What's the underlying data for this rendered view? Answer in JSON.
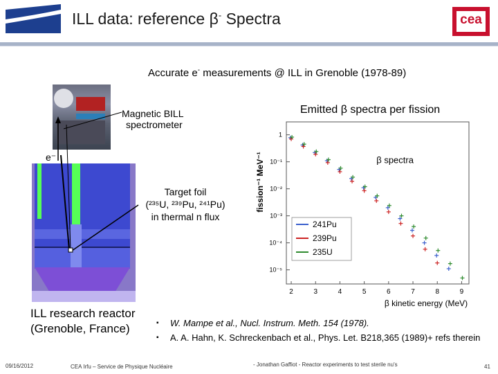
{
  "header": {
    "title": "ILL data:  reference β",
    "title_sup": "-",
    "title_end": " Spectra"
  },
  "subtitle": {
    "part1": "Accurate e",
    "sup": "-",
    "part2": " measurements @ ILL in Grenoble (1978-89)"
  },
  "labels": {
    "spectrometer_line1": "Magnetic BILL",
    "spectrometer_line2": "spectrometer",
    "electron": "e⁻",
    "target_line1": "Target foil",
    "target_line2": "(²³⁵U, ²³⁹Pu, ²⁴¹Pu)",
    "target_line3": "in thermal n flux",
    "reactor_line1": "ILL research reactor",
    "reactor_line2": "(Grenoble, France)",
    "plot_heading": "Emitted β spectra per fission"
  },
  "references": [
    {
      "text": "W. Mampe et al., Nucl. Instrum. Meth. 154 (1978)."
    },
    {
      "text": "A. A. Hahn, K. Schreckenbach et al., Phys. Let. B218,365 (1989)+ refs therein"
    }
  ],
  "footer": {
    "date": "09/16/2012",
    "org": "CEA Irfu – Service de Physique Nucléaire",
    "author": "- Jonathan Gaffiot - Reactor experiments to test sterile nu's",
    "page": "41"
  },
  "logo": {
    "text": "cea",
    "color": "#c8102e"
  },
  "chart_data": {
    "type": "scatter",
    "title": "",
    "annotation": "β spectra",
    "xlabel": "β kinetic energy (MeV)",
    "ylabel": "fission⁻¹ MeV⁻¹",
    "xscale": "linear",
    "yscale": "log",
    "xlim": [
      1.8,
      9.3
    ],
    "ylim": [
      3e-06,
      3
    ],
    "xticks": [
      2,
      3,
      4,
      5,
      6,
      7,
      8,
      9
    ],
    "ytick_labels": [
      "1",
      "10⁻¹",
      "10⁻²",
      "10⁻³",
      "10⁻⁴",
      "10⁻⁵"
    ],
    "yticks": [
      1,
      0.1,
      0.01,
      0.001,
      0.0001,
      1e-05
    ],
    "grid": false,
    "legend": "bottom-left",
    "series": [
      {
        "name": "241Pu",
        "color": "#3a5fcd",
        "x": [
          2,
          2.5,
          3,
          3.5,
          4,
          4.5,
          5,
          5.5,
          6,
          6.5,
          7,
          7.5,
          8,
          8.5
        ],
        "y": [
          0.78,
          0.42,
          0.22,
          0.11,
          0.052,
          0.024,
          0.011,
          0.0048,
          0.002,
          0.00079,
          0.00029,
          0.0001,
          3.4e-05,
          1.1e-05
        ]
      },
      {
        "name": "239Pu",
        "color": "#cc2222",
        "x": [
          2,
          2.5,
          3,
          3.5,
          4,
          4.5,
          5,
          5.5,
          6,
          6.5,
          7,
          7.5,
          8
        ],
        "y": [
          0.7,
          0.37,
          0.19,
          0.093,
          0.043,
          0.019,
          0.0085,
          0.0036,
          0.0014,
          0.00052,
          0.00018,
          5.8e-05,
          1.8e-05
        ]
      },
      {
        "name": "235U",
        "color": "#2e8b2e",
        "x": [
          2,
          2.5,
          3,
          3.5,
          4,
          4.5,
          5,
          5.5,
          6,
          6.5,
          7,
          7.5,
          8,
          8.5,
          9
        ],
        "y": [
          0.82,
          0.45,
          0.24,
          0.12,
          0.058,
          0.027,
          0.012,
          0.0055,
          0.0024,
          0.001,
          0.0004,
          0.00015,
          5.2e-05,
          1.7e-05,
          5e-06
        ]
      }
    ]
  }
}
